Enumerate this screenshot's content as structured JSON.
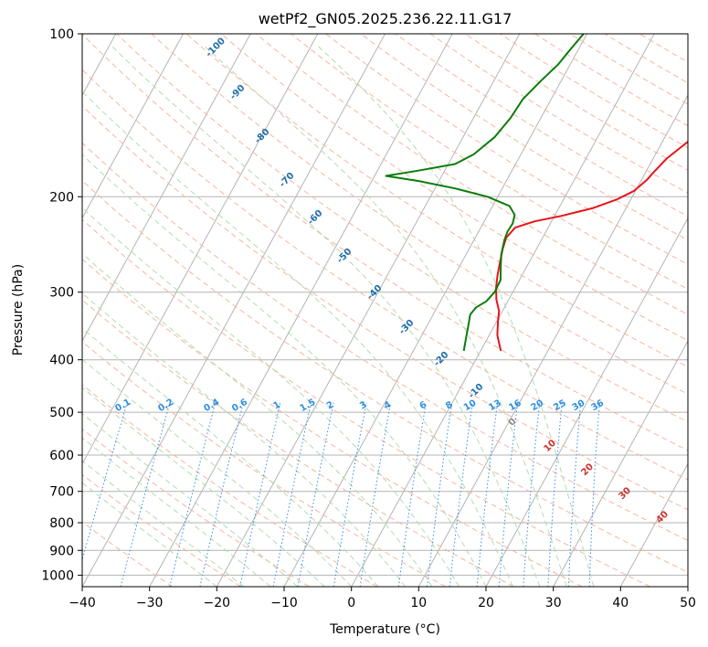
{
  "chart_data": {
    "type": "line",
    "chart_kind": "skew-T log-P diagram",
    "title": "wetPf2_GN05.2025.236.22.11.G17",
    "xlabel": "Temperature (°C)",
    "ylabel": "Pressure (hPa)",
    "xlim": [
      -40,
      50
    ],
    "ylim": [
      1050,
      100
    ],
    "y_scale": "log",
    "x_ticks": [
      "−40",
      "−30",
      "−20",
      "−10",
      "0",
      "10",
      "20",
      "30",
      "40",
      "50"
    ],
    "x_tick_values": [
      -40,
      -30,
      -20,
      -10,
      0,
      10,
      20,
      30,
      40,
      50
    ],
    "y_ticks": [
      "100",
      "200",
      "300",
      "400",
      "500",
      "600",
      "700",
      "800",
      "900",
      "1000"
    ],
    "y_tick_values": [
      100,
      200,
      300,
      400,
      500,
      600,
      700,
      800,
      900,
      1000
    ],
    "grid": true,
    "colors": {
      "temperature": "#e8141b",
      "dewpoint": "#0a7d0a",
      "isotherm": "#b4b4b4",
      "dry_adiabat": "#f7b5a0",
      "moist_adiabat": "#b2dcae",
      "mixing_ratio": "#2f8fe0",
      "saturation_label": "#1f6fa8",
      "isotherm_label_pos": "#d03030",
      "isotherm_label_zero": "#8a8a8a",
      "bottom_curve": "#ddc7ae"
    },
    "series": [
      {
        "key": "temperature",
        "points": [
          {
            "p": 385,
            "t": 3.0
          },
          {
            "p": 360,
            "t": 1.2
          },
          {
            "p": 340,
            "t": 0.2
          },
          {
            "p": 325,
            "t": -0.5
          },
          {
            "p": 310,
            "t": -1.8
          },
          {
            "p": 295,
            "t": -2.8
          },
          {
            "p": 280,
            "t": -3.6
          },
          {
            "p": 265,
            "t": -4.3
          },
          {
            "p": 250,
            "t": -5.0
          },
          {
            "p": 238,
            "t": -5.4
          },
          {
            "p": 228,
            "t": -4.9
          },
          {
            "p": 222,
            "t": -2.5
          },
          {
            "p": 217,
            "t": 1.0
          },
          {
            "p": 210,
            "t": 5.0
          },
          {
            "p": 202,
            "t": 8.0
          },
          {
            "p": 195,
            "t": 9.8
          },
          {
            "p": 186,
            "t": 10.8
          },
          {
            "p": 180,
            "t": 11.2
          },
          {
            "p": 170,
            "t": 12.0
          },
          {
            "p": 160,
            "t": 13.5
          },
          {
            "p": 148,
            "t": 15.5
          },
          {
            "p": 136,
            "t": 18.0
          },
          {
            "p": 126,
            "t": 20.3
          },
          {
            "p": 117,
            "t": 22.0
          },
          {
            "p": 110,
            "t": 24.0
          },
          {
            "p": 105,
            "t": 25.3
          },
          {
            "p": 100,
            "t": 27.0
          }
        ]
      },
      {
        "key": "dewpoint",
        "points": [
          {
            "p": 385,
            "t": -2.5
          },
          {
            "p": 365,
            "t": -3.2
          },
          {
            "p": 345,
            "t": -3.9
          },
          {
            "p": 330,
            "t": -4.5
          },
          {
            "p": 320,
            "t": -4.2
          },
          {
            "p": 312,
            "t": -3.2
          },
          {
            "p": 300,
            "t": -2.7
          },
          {
            "p": 285,
            "t": -2.8
          },
          {
            "p": 270,
            "t": -3.8
          },
          {
            "p": 255,
            "t": -4.8
          },
          {
            "p": 240,
            "t": -5.5
          },
          {
            "p": 232,
            "t": -5.7
          },
          {
            "p": 224,
            "t": -5.6
          },
          {
            "p": 216,
            "t": -6.0
          },
          {
            "p": 208,
            "t": -7.5
          },
          {
            "p": 200,
            "t": -11.5
          },
          {
            "p": 193,
            "t": -17.0
          },
          {
            "p": 187,
            "t": -23.0
          },
          {
            "p": 183,
            "t": -28.3
          },
          {
            "p": 179,
            "t": -24.0
          },
          {
            "p": 174,
            "t": -19.0
          },
          {
            "p": 167,
            "t": -17.0
          },
          {
            "p": 155,
            "t": -15.3
          },
          {
            "p": 143,
            "t": -14.5
          },
          {
            "p": 132,
            "t": -14.2
          },
          {
            "p": 122,
            "t": -13.0
          },
          {
            "p": 114,
            "t": -11.8
          },
          {
            "p": 107,
            "t": -11.2
          },
          {
            "p": 100,
            "t": -10.5
          }
        ]
      }
    ],
    "saturation_labels": [
      "-100",
      "-90",
      "-80",
      "-70",
      "-60",
      "-50",
      "-40",
      "-30",
      "-20",
      "-10"
    ],
    "saturation_label_values": [
      -100,
      -90,
      -80,
      -70,
      -60,
      -50,
      -40,
      -30,
      -20,
      -10
    ],
    "mixing_ratio_labels": [
      "0.1",
      "0.2",
      "0.4",
      "0.6",
      "1",
      "1.5",
      "2",
      "3",
      "4",
      "6",
      "8",
      "10",
      "13",
      "16",
      "20",
      "25",
      "30",
      "36"
    ],
    "mixing_ratio_values": [
      0.1,
      0.2,
      0.4,
      0.6,
      1,
      1.5,
      2,
      3,
      4,
      6,
      8,
      10,
      13,
      16,
      20,
      25,
      30,
      36
    ],
    "isotherm_labels": [
      "0",
      "10",
      "20",
      "30",
      "40"
    ],
    "isotherm_label_values": [
      0,
      10,
      20,
      30,
      40
    ]
  }
}
